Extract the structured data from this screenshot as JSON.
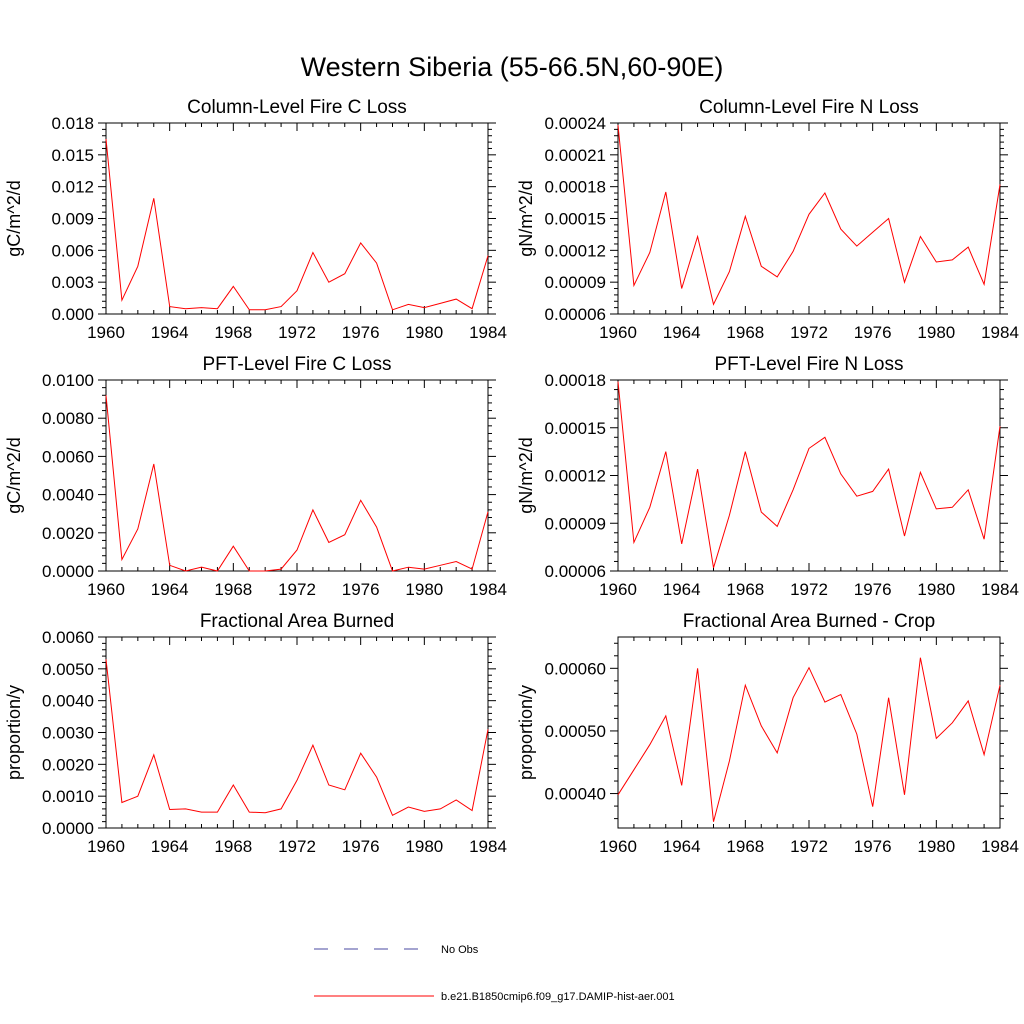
{
  "figure": {
    "title": "Western Siberia (55-66.5N,60-90E)"
  },
  "legend": {
    "entries": [
      {
        "label": "No Obs",
        "color": "#4a4aa0",
        "style": "dashed"
      },
      {
        "label": "b.e21.B1850cmip6.f09_g17.DAMIP-hist-aer.001",
        "color": "#ff0000",
        "style": "solid"
      }
    ]
  },
  "chart_data": [
    {
      "type": "line",
      "title": "Column-Level Fire C Loss",
      "ylabel": "gC/m^2/d",
      "xlim": [
        1960,
        1984
      ],
      "xticks": [
        1960,
        1964,
        1968,
        1972,
        1976,
        1980,
        1984
      ],
      "ylim": [
        0,
        0.018
      ],
      "yticks": [
        "0.000",
        "0.003",
        "0.006",
        "0.009",
        "0.012",
        "0.015",
        "0.018"
      ],
      "series": [
        {
          "color": "#ff0000",
          "x": [
            1960,
            1961,
            1962,
            1963,
            1964,
            1965,
            1966,
            1967,
            1968,
            1969,
            1970,
            1971,
            1972,
            1973,
            1974,
            1975,
            1976,
            1977,
            1978,
            1979,
            1980,
            1981,
            1982,
            1983,
            1984
          ],
          "y": [
            0.0165,
            0.0013,
            0.0045,
            0.0109,
            0.0007,
            0.0005,
            0.0006,
            0.0005,
            0.0026,
            0.0004,
            0.0004,
            0.0007,
            0.0022,
            0.0058,
            0.003,
            0.0038,
            0.0067,
            0.0048,
            0.0004,
            0.0009,
            0.0006,
            0.001,
            0.0014,
            0.0005,
            0.0055
          ]
        }
      ]
    },
    {
      "type": "line",
      "title": "Column-Level Fire N Loss",
      "ylabel": "gN/m^2/d",
      "xlim": [
        1960,
        1984
      ],
      "xticks": [
        1960,
        1964,
        1968,
        1972,
        1976,
        1980,
        1984
      ],
      "ylim": [
        6e-05,
        0.00024
      ],
      "yticks": [
        "0.00006",
        "0.00009",
        "0.00012",
        "0.00015",
        "0.00018",
        "0.00021",
        "0.00024"
      ],
      "series": [
        {
          "color": "#ff0000",
          "x": [
            1960,
            1961,
            1962,
            1963,
            1964,
            1965,
            1966,
            1967,
            1968,
            1969,
            1970,
            1971,
            1972,
            1973,
            1974,
            1975,
            1976,
            1977,
            1978,
            1979,
            1980,
            1981,
            1982,
            1983,
            1984
          ],
          "y": [
            0.000238,
            8.7e-05,
            0.000118,
            0.000175,
            8.4e-05,
            0.000133,
            6.9e-05,
            0.0001,
            0.000152,
            0.000105,
            9.5e-05,
            0.000119,
            0.000154,
            0.000174,
            0.00014,
            0.000124,
            0.000137,
            0.00015,
            9e-05,
            0.000133,
            0.000109,
            0.000111,
            0.000123,
            8.8e-05,
            0.000182
          ]
        }
      ]
    },
    {
      "type": "line",
      "title": "PFT-Level Fire C Loss",
      "ylabel": "gC/m^2/d",
      "xlim": [
        1960,
        1984
      ],
      "xticks": [
        1960,
        1964,
        1968,
        1972,
        1976,
        1980,
        1984
      ],
      "ylim": [
        0,
        0.01
      ],
      "yticks": [
        "0.0000",
        "0.0020",
        "0.0040",
        "0.0060",
        "0.0080",
        "0.0100"
      ],
      "series": [
        {
          "color": "#ff0000",
          "x": [
            1960,
            1961,
            1962,
            1963,
            1964,
            1965,
            1966,
            1967,
            1968,
            1969,
            1970,
            1971,
            1972,
            1973,
            1974,
            1975,
            1976,
            1977,
            1978,
            1979,
            1980,
            1981,
            1982,
            1983,
            1984
          ],
          "y": [
            0.0092,
            0.0006,
            0.0022,
            0.0056,
            0.0003,
            0.0,
            0.0002,
            0.0,
            0.0013,
            0.0,
            0.0,
            0.0001,
            0.0011,
            0.0032,
            0.0015,
            0.0019,
            0.0037,
            0.0023,
            0.0,
            0.0002,
            0.0001,
            0.0003,
            0.0005,
            0.0001,
            0.0031
          ]
        }
      ]
    },
    {
      "type": "line",
      "title": "PFT-Level Fire N Loss",
      "ylabel": "gN/m^2/d",
      "xlim": [
        1960,
        1984
      ],
      "xticks": [
        1960,
        1964,
        1968,
        1972,
        1976,
        1980,
        1984
      ],
      "ylim": [
        6e-05,
        0.00018
      ],
      "yticks": [
        "0.00006",
        "0.00009",
        "0.00012",
        "0.00015",
        "0.00018"
      ],
      "series": [
        {
          "color": "#ff0000",
          "x": [
            1960,
            1961,
            1962,
            1963,
            1964,
            1965,
            1966,
            1967,
            1968,
            1969,
            1970,
            1971,
            1972,
            1973,
            1974,
            1975,
            1976,
            1977,
            1978,
            1979,
            1980,
            1981,
            1982,
            1983,
            1984
          ],
          "y": [
            0.000179,
            7.8e-05,
            0.0001,
            0.000135,
            7.7e-05,
            0.000124,
            6.2e-05,
            9.5e-05,
            0.000135,
            9.7e-05,
            8.8e-05,
            0.000111,
            0.000137,
            0.000144,
            0.000121,
            0.000107,
            0.00011,
            0.000124,
            8.2e-05,
            0.000122,
            9.9e-05,
            0.0001,
            0.000111,
            8e-05,
            0.000151
          ]
        }
      ]
    },
    {
      "type": "line",
      "title": "Fractional Area Burned",
      "ylabel": "proportion/y",
      "xlim": [
        1960,
        1984
      ],
      "xticks": [
        1960,
        1964,
        1968,
        1972,
        1976,
        1980,
        1984
      ],
      "ylim": [
        0,
        0.006
      ],
      "yticks": [
        "0.0000",
        "0.0010",
        "0.0020",
        "0.0030",
        "0.0040",
        "0.0050",
        "0.0060"
      ],
      "series": [
        {
          "color": "#ff0000",
          "x": [
            1960,
            1961,
            1962,
            1963,
            1964,
            1965,
            1966,
            1967,
            1968,
            1969,
            1970,
            1971,
            1972,
            1973,
            1974,
            1975,
            1976,
            1977,
            1978,
            1979,
            1980,
            1981,
            1982,
            1983,
            1984
          ],
          "y": [
            0.0053,
            0.0008,
            0.001,
            0.0023,
            0.00058,
            0.0006,
            0.0005,
            0.0005,
            0.00135,
            0.0005,
            0.00048,
            0.0006,
            0.0015,
            0.0026,
            0.00135,
            0.0012,
            0.00235,
            0.0016,
            0.0004,
            0.00066,
            0.00052,
            0.0006,
            0.00088,
            0.00055,
            0.0031
          ]
        }
      ]
    },
    {
      "type": "line",
      "title": "Fractional Area Burned - Crop",
      "ylabel": "proportion/y",
      "xlim": [
        1960,
        1984
      ],
      "xticks": [
        1960,
        1964,
        1968,
        1972,
        1976,
        1980,
        1984
      ],
      "ylim": [
        0.000345,
        0.00065
      ],
      "yticks": [
        "0.00040",
        "0.00050",
        "0.00060"
      ],
      "ytick_values": [
        0.0004,
        0.0005,
        0.0006
      ],
      "series": [
        {
          "color": "#ff0000",
          "x": [
            1960,
            1961,
            1962,
            1963,
            1964,
            1965,
            1966,
            1967,
            1968,
            1969,
            1970,
            1971,
            1972,
            1973,
            1974,
            1975,
            1976,
            1977,
            1978,
            1979,
            1980,
            1981,
            1982,
            1983,
            1984
          ],
          "y": [
            0.000398,
            0.000438,
            0.000478,
            0.000524,
            0.000413,
            0.0006,
            0.000355,
            0.000452,
            0.000573,
            0.000508,
            0.000465,
            0.000553,
            0.000601,
            0.000546,
            0.000558,
            0.000495,
            0.000379,
            0.000553,
            0.000398,
            0.000617,
            0.000488,
            0.000513,
            0.000548,
            0.000462,
            0.000573
          ]
        }
      ]
    }
  ]
}
